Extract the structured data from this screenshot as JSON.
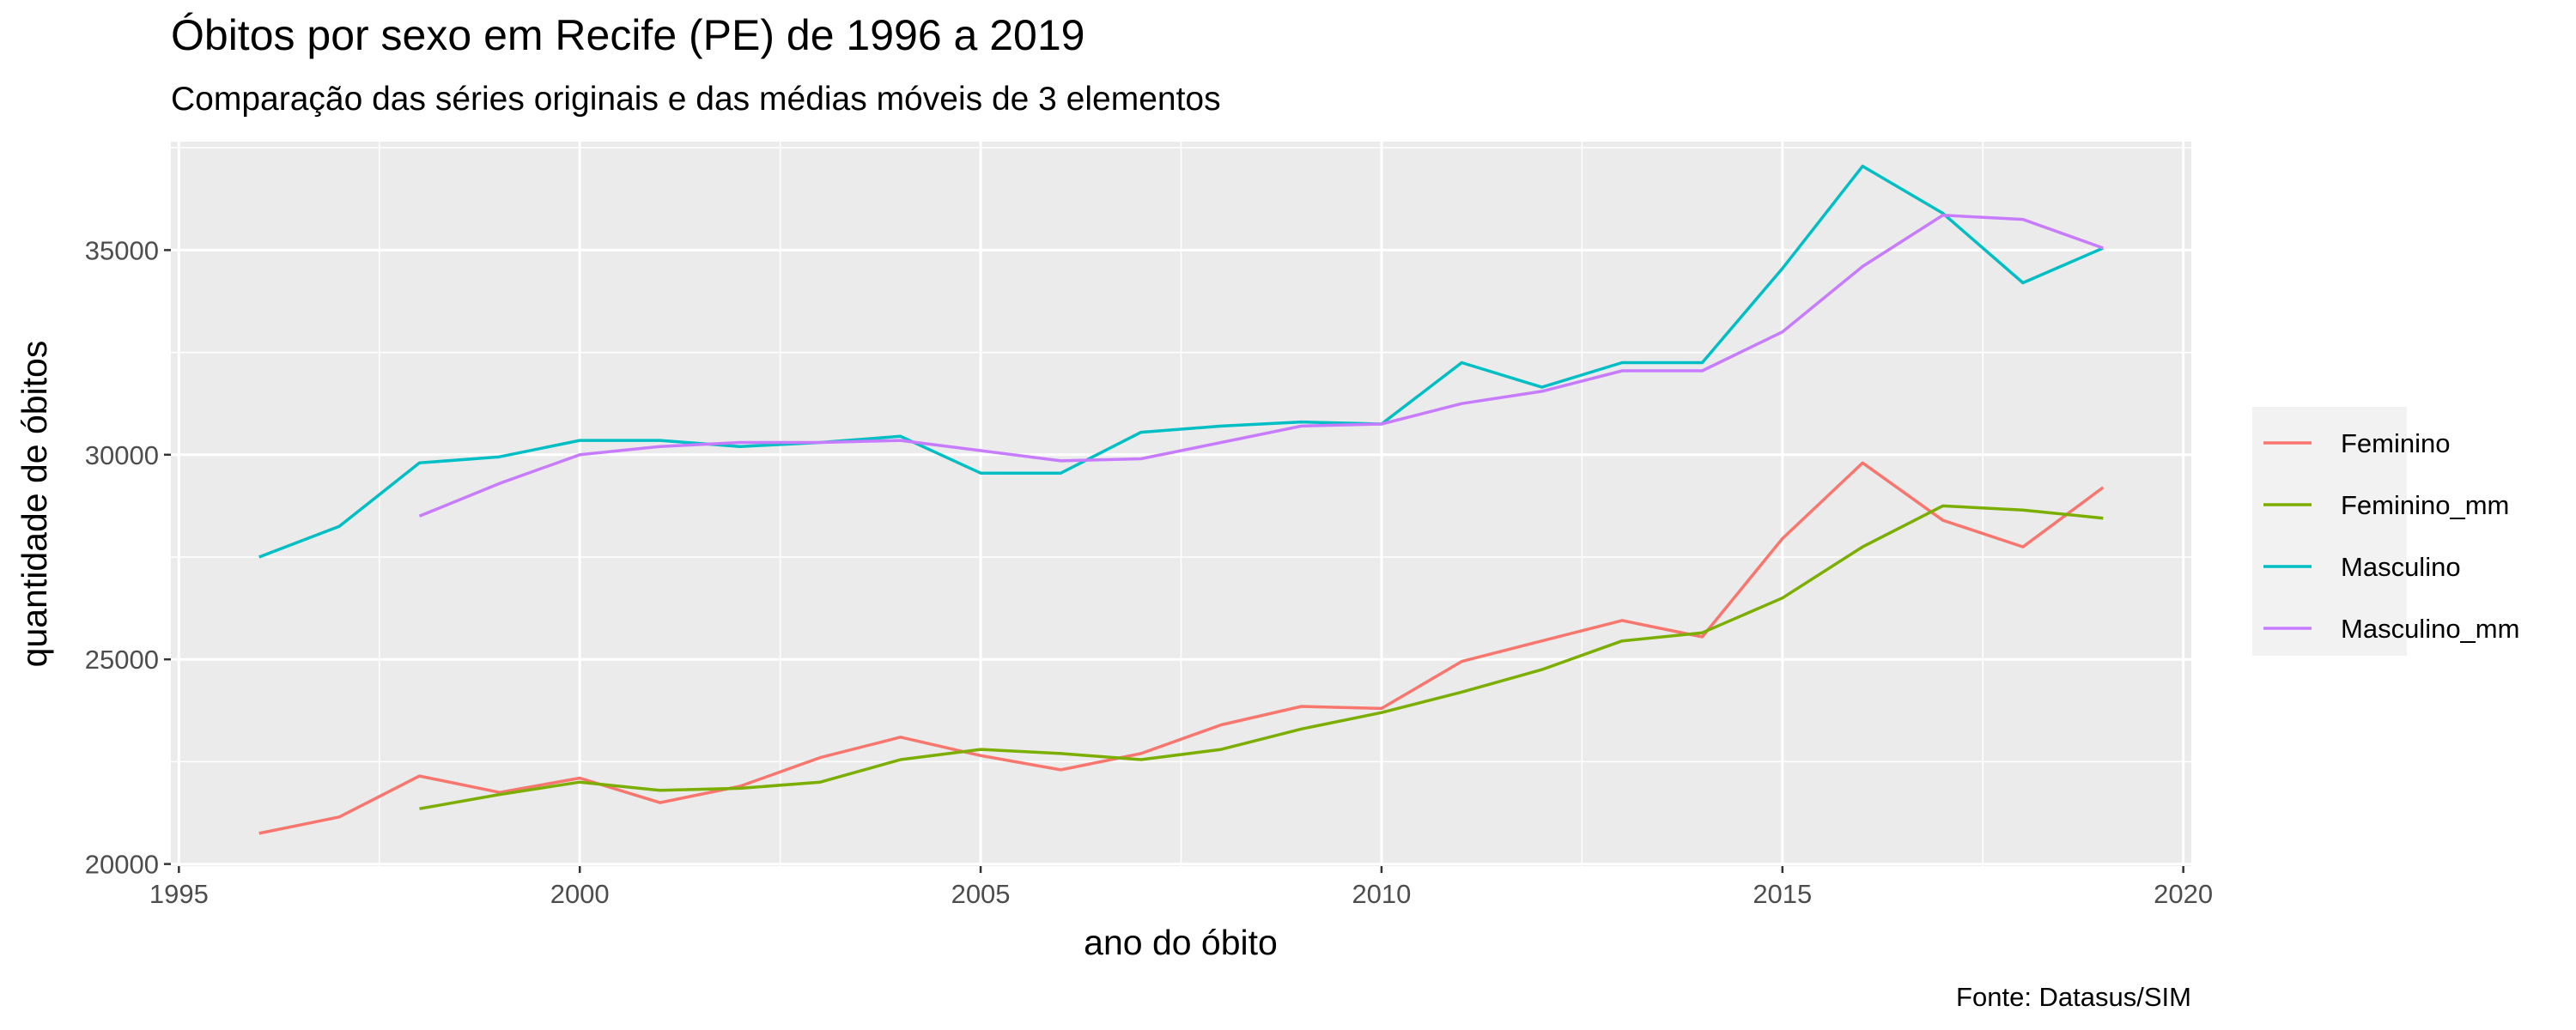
{
  "chart_data": {
    "type": "line",
    "title": "Óbitos por sexo em Recife (PE) de 1996 a 2019",
    "subtitle": "Comparação das séries originais e das médias móveis de 3 elementos",
    "xlabel": "ano do óbito",
    "ylabel": "quantidade de óbitos",
    "caption": "Fonte: Datasus/SIM",
    "xlim": [
      1995,
      2020
    ],
    "ylim": [
      20000,
      37500
    ],
    "x_ticks": [
      1995,
      2000,
      2005,
      2010,
      2015,
      2020
    ],
    "y_ticks": [
      20000,
      25000,
      30000,
      35000
    ],
    "grid": true,
    "legend_position": "right",
    "x": [
      1996,
      1997,
      1998,
      1999,
      2000,
      2001,
      2002,
      2003,
      2004,
      2005,
      2006,
      2007,
      2008,
      2009,
      2010,
      2011,
      2012,
      2013,
      2014,
      2015,
      2016,
      2017,
      2018,
      2019
    ],
    "series": [
      {
        "name": "Feminino",
        "color": "#F8766D",
        "values": [
          20750,
          21150,
          22150,
          21750,
          22100,
          21500,
          21900,
          22600,
          23100,
          22650,
          22300,
          22700,
          23400,
          23850,
          23800,
          24950,
          25450,
          25950,
          25550,
          27950,
          29800,
          28400,
          27750,
          29200
        ]
      },
      {
        "name": "Feminino_mm",
        "color": "#7CAE00",
        "values": [
          null,
          null,
          21350,
          21700,
          22000,
          21800,
          21850,
          22000,
          22550,
          22800,
          22700,
          22550,
          22800,
          23300,
          23700,
          24200,
          24750,
          25450,
          25650,
          26500,
          27750,
          28750,
          28650,
          28450
        ]
      },
      {
        "name": "Masculino",
        "color": "#00BFC4",
        "values": [
          27500,
          28250,
          29800,
          29950,
          30350,
          30350,
          30200,
          30300,
          30450,
          29550,
          29550,
          30550,
          30700,
          30800,
          30750,
          32250,
          31650,
          32250,
          32250,
          34550,
          37050,
          35900,
          34200,
          35050
        ]
      },
      {
        "name": "Masculino_mm",
        "color": "#C77CFF",
        "values": [
          null,
          null,
          28500,
          29300,
          30000,
          30200,
          30300,
          30300,
          30350,
          30100,
          29850,
          29900,
          30300,
          30700,
          30750,
          31250,
          31550,
          32050,
          32050,
          33000,
          34600,
          35850,
          35750,
          35050
        ]
      }
    ]
  }
}
